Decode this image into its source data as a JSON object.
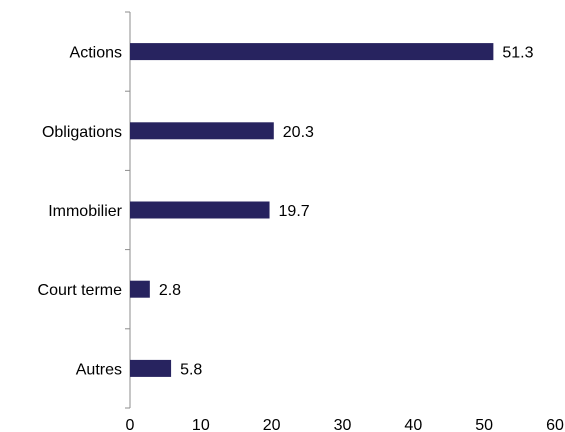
{
  "chart_data": {
    "type": "bar",
    "orientation": "horizontal",
    "title": "",
    "xlabel": "",
    "ylabel": "",
    "categories": [
      "Actions",
      "Obligations",
      "Immobilier",
      "Court terme",
      "Autres"
    ],
    "values": [
      51.3,
      20.3,
      19.7,
      2.8,
      5.8
    ],
    "xlim": [
      0,
      60
    ],
    "xticks": [
      0,
      10,
      20,
      30,
      40,
      50,
      60
    ],
    "grid": false,
    "legend": "none",
    "bar_color": "#27235f"
  }
}
